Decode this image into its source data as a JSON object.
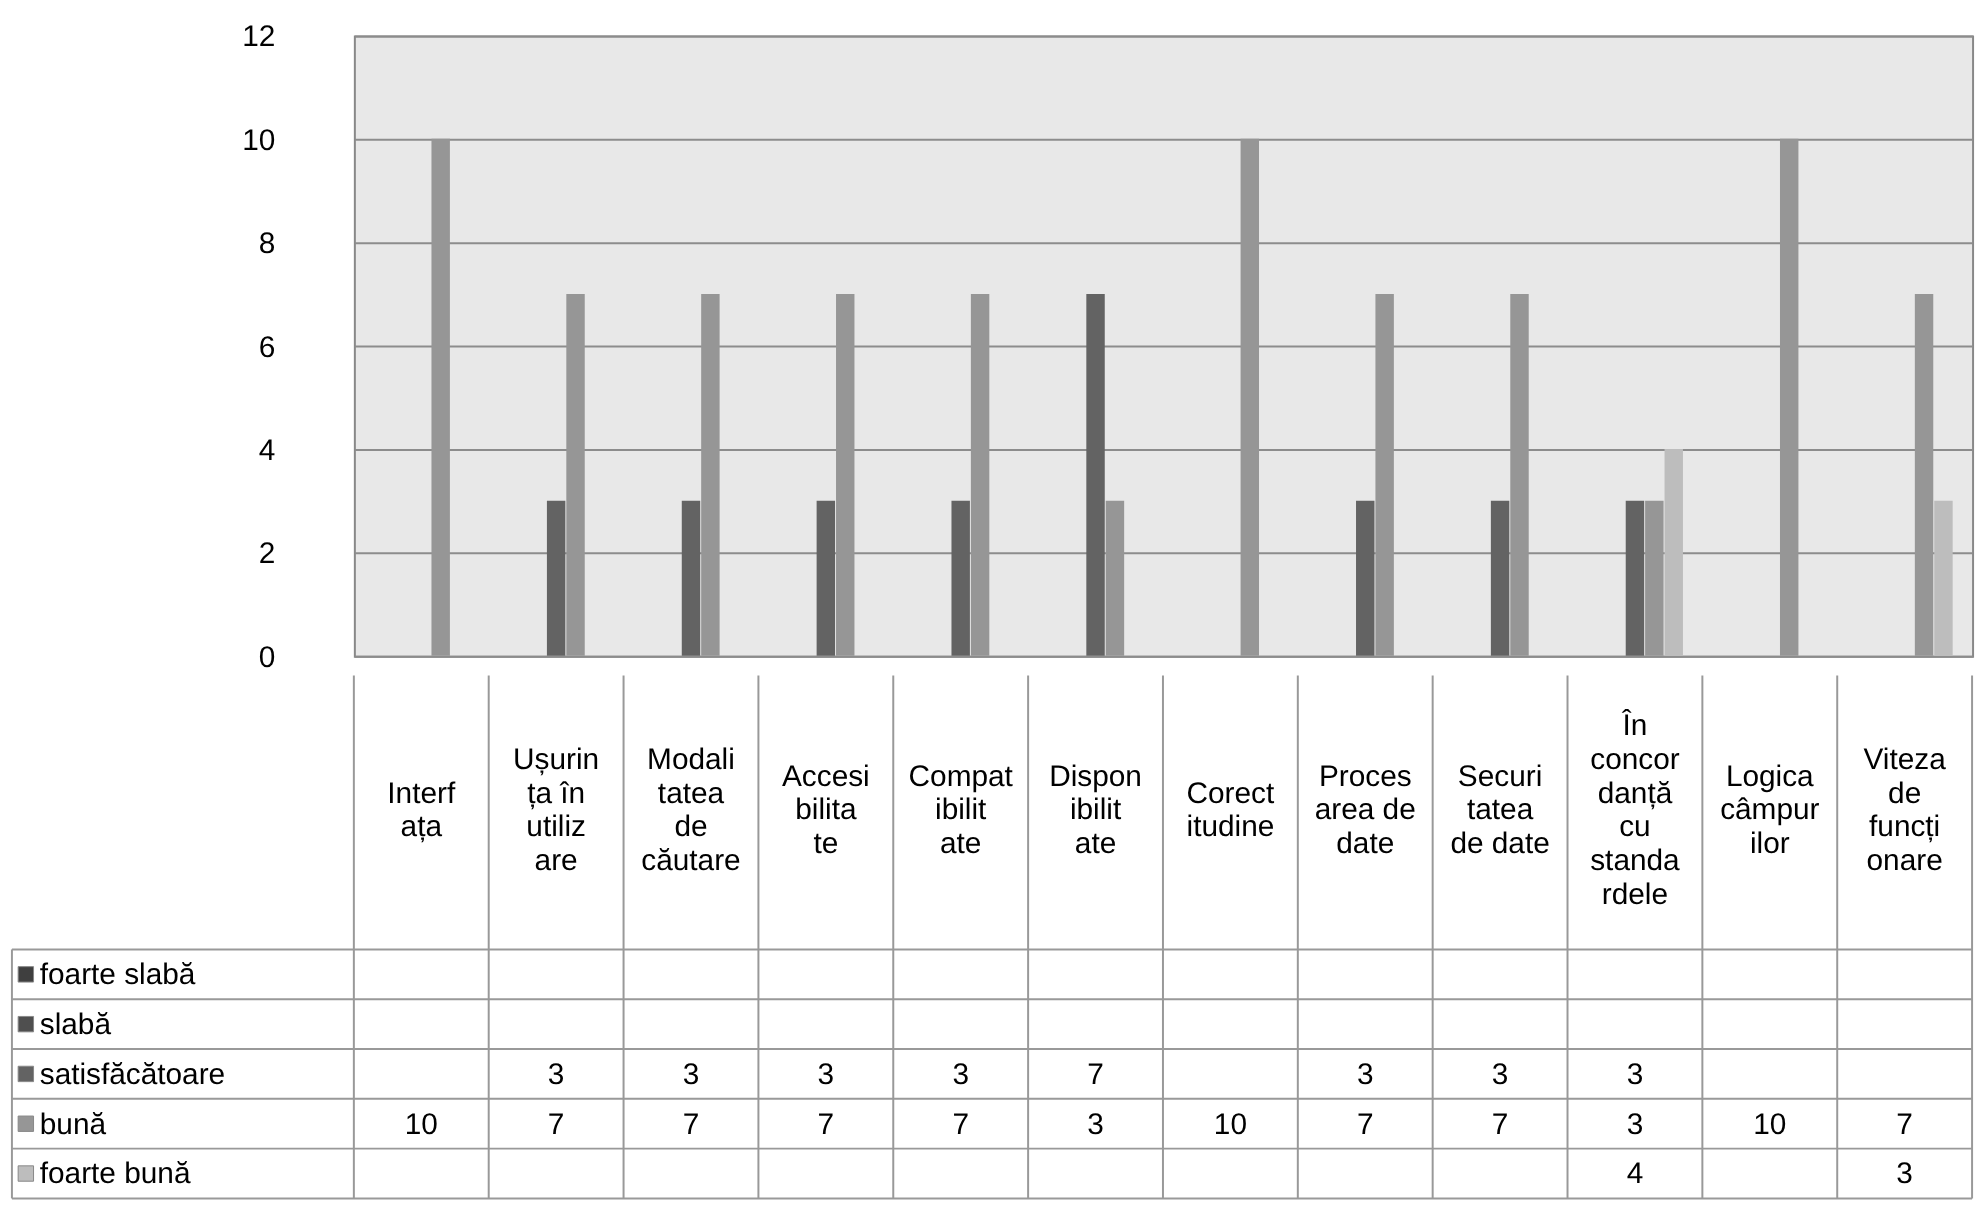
{
  "chart_data": {
    "type": "bar",
    "categories": [
      "Interfața",
      "Ușurința în utilizare",
      "Modalitatea de căutare",
      "Accesibilitate",
      "Compatibilitate",
      "Disponibilitate",
      "Corectitudine",
      "Procesarea de date",
      "Securitatea de date",
      "În concordanță cu standardele",
      "Logica câmpurilor",
      "Viteza de funcționare"
    ],
    "series": [
      {
        "name": "foarte slabă",
        "color": "#3f3f3f",
        "values": [
          null,
          null,
          null,
          null,
          null,
          null,
          null,
          null,
          null,
          null,
          null,
          null
        ]
      },
      {
        "name": "slabă",
        "color": "#4f4f4f",
        "values": [
          null,
          null,
          null,
          null,
          null,
          null,
          null,
          null,
          null,
          null,
          null,
          null
        ]
      },
      {
        "name": "satisfăcătoare",
        "color": "#636363",
        "values": [
          null,
          3,
          3,
          3,
          3,
          7,
          null,
          3,
          3,
          3,
          null,
          null
        ]
      },
      {
        "name": "bună",
        "color": "#969696",
        "values": [
          10,
          7,
          7,
          7,
          7,
          3,
          10,
          7,
          7,
          3,
          10,
          7
        ]
      },
      {
        "name": "foarte bună",
        "color": "#bdbdbd",
        "values": [
          null,
          null,
          null,
          null,
          null,
          null,
          null,
          null,
          null,
          4,
          null,
          3
        ]
      }
    ],
    "ylim": [
      0,
      12
    ],
    "yticks": [
      0,
      2,
      4,
      6,
      8,
      10,
      12
    ],
    "grid": "y",
    "legend": "bottom left",
    "data_labels": true
  }
}
